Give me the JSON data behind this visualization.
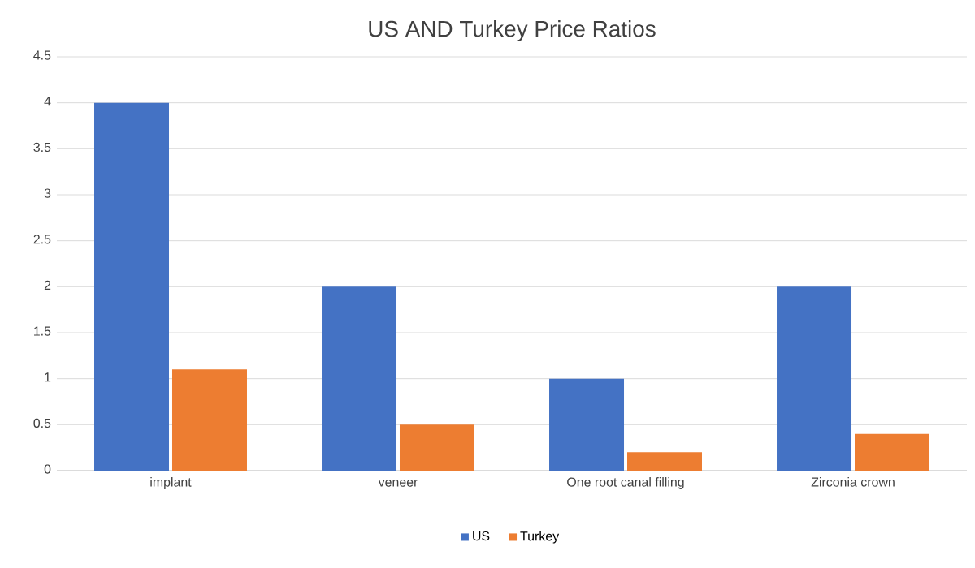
{
  "chart_data": {
    "type": "bar",
    "title": "US AND Turkey Price Ratios",
    "categories": [
      "implant",
      "veneer",
      "One root canal filling",
      "Zirconia crown"
    ],
    "series": [
      {
        "name": "US",
        "color": "#4472c4",
        "values": [
          4,
          2,
          1,
          2
        ]
      },
      {
        "name": "Turkey",
        "color": "#ed7d31",
        "values": [
          1.1,
          0.5,
          0.2,
          0.4
        ]
      }
    ],
    "ylim": [
      0,
      4.5
    ],
    "yticks": [
      0,
      0.5,
      1,
      1.5,
      2,
      2.5,
      3,
      3.5,
      4,
      4.5
    ],
    "grid": "y",
    "legend": "bottom"
  }
}
